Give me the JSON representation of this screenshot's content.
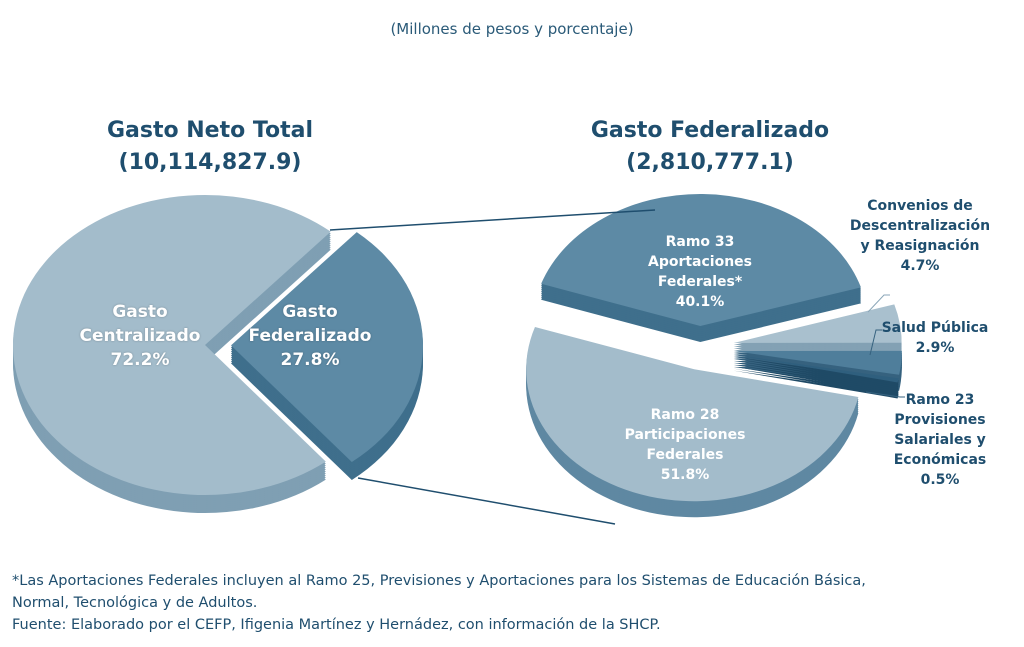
{
  "subtitle": "(Millones de pesos y porcentaje)",
  "chart_data": [
    {
      "type": "pie",
      "title": "Gasto Neto Total",
      "total": "(10,114,827.9)",
      "slices": [
        {
          "label": "Gasto Centralizado",
          "value": 72.2,
          "value_label": "72.2%",
          "color": "#a3bccb",
          "side": "#7f9fb3"
        },
        {
          "label": "Gasto Federalizado",
          "value": 27.8,
          "value_label": "27.8%",
          "color": "#5d8aa5",
          "side": "#3f6f8c"
        }
      ]
    },
    {
      "type": "pie",
      "title": "Gasto Federalizado",
      "total": "(2,810,777.1)",
      "slices": [
        {
          "label": "Convenios de Descentralización y Reasignación",
          "value": 4.7,
          "value_label": "4.7%",
          "color": "#a9c0ce",
          "side": "#83a1b4"
        },
        {
          "label": "Salud Pública",
          "value": 2.9,
          "value_label": "2.9%",
          "color": "#4f7e9b",
          "side": "#36627f"
        },
        {
          "label": "Ramo 23 Provisiones Salariales y Económicas",
          "value": 0.5,
          "value_label": "0.5%",
          "color": "#2f5f7e",
          "side": "#1f4a66"
        },
        {
          "label": "Ramo 28 Participaciones Federales",
          "value": 51.8,
          "value_label": "51.8%",
          "color": "#a3bccb",
          "side": "#5f88a2"
        },
        {
          "label": "Ramo 33 Aportaciones Federales*",
          "value": 40.1,
          "value_label": "40.1%",
          "color": "#5d8aa5",
          "side": "#3f6f8c"
        }
      ]
    }
  ],
  "labels": {
    "centralizado": [
      "Gasto",
      "Centralizado"
    ],
    "federalizado": [
      "Gasto",
      "Federalizado"
    ],
    "ramo33": [
      "Ramo 33",
      "Aportaciones",
      "Federales*"
    ],
    "ramo28": [
      "Ramo 28",
      "Participaciones",
      "Federales"
    ],
    "convenios": [
      "Convenios de",
      "Descentralización",
      "y Reasignación"
    ],
    "salud": [
      "Salud Pública"
    ],
    "ramo23": [
      "Ramo 23",
      "Provisiones",
      "Salariales y",
      "Económicas"
    ]
  },
  "footnote": [
    "*Las Aportaciones Federales incluyen al Ramo 25, Previsiones y Aportaciones para los Sistemas de Educación Básica,",
    "Normal, Tecnológica y de Adultos.",
    "Fuente: Elaborado por el CEFP, Ifigenia Martínez y Hernádez,  con información de la SHCP."
  ]
}
